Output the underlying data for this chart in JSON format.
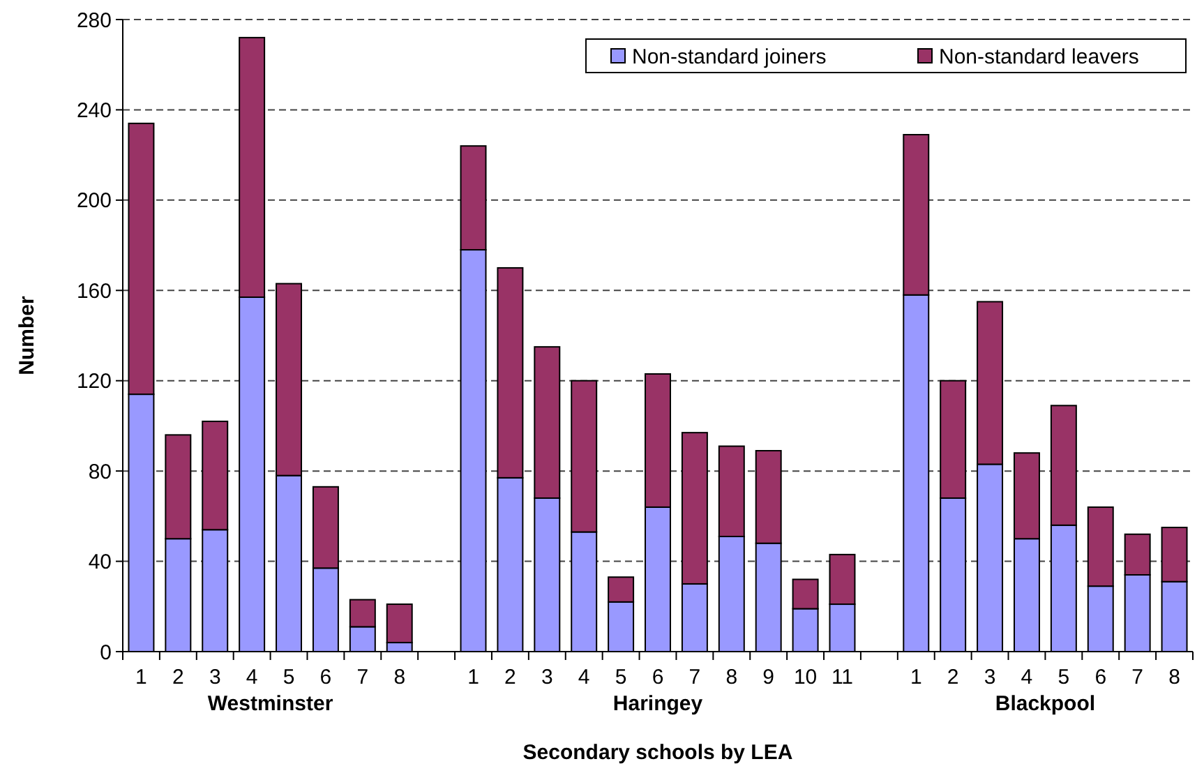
{
  "chart_data": {
    "type": "bar",
    "stacked": true,
    "xlabel": "Secondary schools by LEA",
    "ylabel": "Number",
    "categories": [
      "1",
      "2",
      "3",
      "4",
      "5",
      "6",
      "7",
      "8",
      null,
      "1",
      "2",
      "3",
      "4",
      "5",
      "6",
      "7",
      "8",
      "9",
      "10",
      "11",
      null,
      "1",
      "2",
      "3",
      "4",
      "5",
      "6",
      "7",
      "8"
    ],
    "series": [
      {
        "name": "Non-standard joiners",
        "color": "#9999ff",
        "values": [
          114,
          50,
          54,
          157,
          78,
          37,
          11,
          4,
          null,
          178,
          77,
          68,
          53,
          22,
          64,
          30,
          51,
          48,
          19,
          21,
          null,
          158,
          68,
          83,
          50,
          56,
          29,
          34,
          31
        ]
      },
      {
        "name": "Non-standard leavers",
        "color": "#993366",
        "values": [
          120,
          46,
          48,
          115,
          85,
          36,
          12,
          17,
          null,
          46,
          93,
          67,
          67,
          11,
          59,
          67,
          40,
          41,
          13,
          22,
          null,
          71,
          52,
          72,
          38,
          53,
          35,
          18,
          24
        ]
      }
    ],
    "annotations": [
      "Westminster",
      "Haringey",
      "Blackpool"
    ],
    "ylim": [
      0,
      280
    ],
    "yticks": [
      0,
      40,
      80,
      120,
      160,
      200,
      240,
      280
    ],
    "grid": "y",
    "legend": "top right"
  }
}
